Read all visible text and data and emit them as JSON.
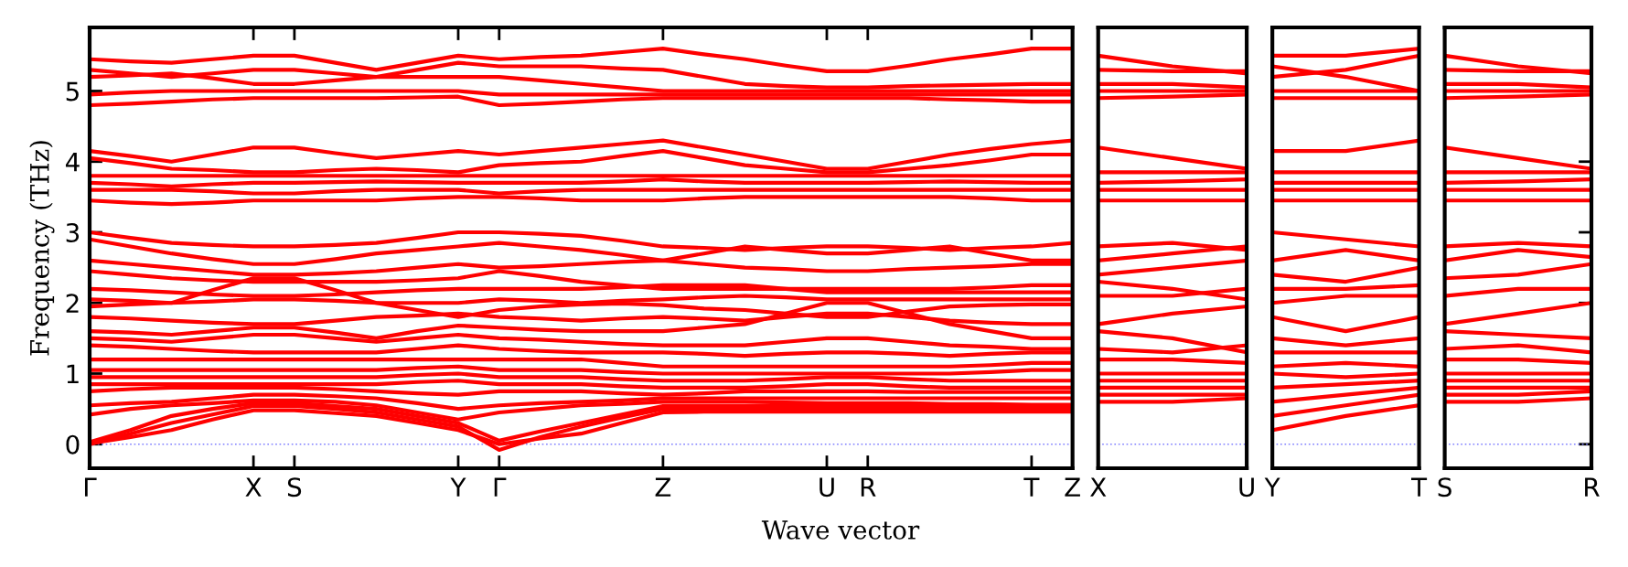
{
  "chart_data": [
    {
      "type": "line",
      "ylabel": "Frequency (THz)",
      "xlabel": "Wave vector",
      "categories": [
        "Γ",
        null,
        null,
        null,
        "X",
        "S",
        null,
        null,
        null,
        "Y",
        "Γ",
        null,
        null,
        null,
        "Z",
        null,
        null,
        null,
        "U",
        "R",
        null,
        null,
        null,
        "T",
        "Z"
      ],
      "ylim": [
        -0.34,
        5.9
      ],
      "yticks": [
        0,
        1,
        2,
        3,
        4,
        5
      ],
      "grid": false,
      "legend": false,
      "marker": "none",
      "line_style": "solid",
      "ref_lines": [
        {
          "axis": "y",
          "value": 0,
          "color": "#8080ff",
          "line_style": "dotted"
        }
      ],
      "series": [
        {
          "color": "#ff0000",
          "values": [
            5.45,
            5.42,
            5.4,
            5.45,
            5.5,
            5.5,
            5.4,
            5.3,
            5.4,
            5.5,
            5.45,
            5.48,
            5.5,
            5.55,
            5.6,
            5.52,
            5.45,
            5.36,
            5.28,
            5.28,
            5.36,
            5.45,
            5.52,
            5.6,
            5.6
          ]
        },
        {
          "color": "#ff0000",
          "values": [
            5.3,
            5.25,
            5.2,
            5.25,
            5.3,
            5.3,
            5.25,
            5.2,
            5.3,
            5.4,
            5.35,
            5.35,
            5.35,
            5.32,
            5.3,
            5.2,
            5.1,
            5.07,
            5.05,
            5.05,
            5.07,
            5.08,
            5.09,
            5.1,
            5.1
          ]
        },
        {
          "color": "#ff0000",
          "values": [
            5.2,
            5.22,
            5.25,
            5.18,
            5.1,
            5.1,
            5.15,
            5.2,
            5.2,
            5.2,
            5.2,
            5.15,
            5.1,
            5.05,
            5.0,
            5.0,
            5.0,
            5.0,
            5.0,
            5.0,
            5.0,
            5.0,
            5.0,
            5.0,
            5.0
          ]
        },
        {
          "color": "#ff0000",
          "values": [
            4.95,
            4.98,
            5.0,
            5.0,
            5.0,
            5.0,
            5.0,
            5.0,
            5.0,
            5.0,
            4.95,
            4.95,
            4.95,
            4.95,
            4.95,
            4.95,
            4.95,
            4.95,
            4.95,
            4.95,
            4.95,
            4.95,
            4.95,
            4.95,
            4.95
          ]
        },
        {
          "color": "#ff0000",
          "values": [
            4.8,
            4.82,
            4.85,
            4.88,
            4.9,
            4.9,
            4.9,
            4.9,
            4.91,
            4.92,
            4.8,
            4.82,
            4.85,
            4.88,
            4.9,
            4.9,
            4.9,
            4.9,
            4.9,
            4.9,
            4.9,
            4.88,
            4.87,
            4.85,
            4.85
          ]
        },
        {
          "color": "#ff0000",
          "values": [
            4.15,
            4.08,
            4.0,
            4.1,
            4.2,
            4.2,
            4.12,
            4.05,
            4.1,
            4.15,
            4.1,
            4.15,
            4.2,
            4.25,
            4.3,
            4.2,
            4.1,
            4.0,
            3.9,
            3.9,
            4.0,
            4.1,
            4.18,
            4.25,
            4.3
          ]
        },
        {
          "color": "#ff0000",
          "values": [
            4.05,
            3.98,
            3.9,
            3.88,
            3.85,
            3.85,
            3.88,
            3.9,
            3.88,
            3.85,
            3.95,
            3.98,
            4.0,
            4.08,
            4.15,
            4.05,
            3.95,
            3.9,
            3.85,
            3.85,
            3.9,
            3.95,
            4.02,
            4.1,
            4.1
          ]
        },
        {
          "color": "#ff0000",
          "values": [
            3.8,
            3.8,
            3.8,
            3.8,
            3.8,
            3.8,
            3.8,
            3.8,
            3.8,
            3.8,
            3.8,
            3.8,
            3.8,
            3.8,
            3.8,
            3.8,
            3.8,
            3.8,
            3.8,
            3.8,
            3.8,
            3.8,
            3.8,
            3.8,
            3.8
          ]
        },
        {
          "color": "#ff0000",
          "values": [
            3.7,
            3.68,
            3.65,
            3.68,
            3.7,
            3.7,
            3.71,
            3.72,
            3.71,
            3.7,
            3.7,
            3.7,
            3.7,
            3.72,
            3.75,
            3.72,
            3.7,
            3.7,
            3.7,
            3.7,
            3.71,
            3.72,
            3.71,
            3.7,
            3.7
          ]
        },
        {
          "color": "#ff0000",
          "values": [
            3.6,
            3.6,
            3.6,
            3.58,
            3.55,
            3.55,
            3.58,
            3.6,
            3.6,
            3.6,
            3.55,
            3.58,
            3.6,
            3.6,
            3.6,
            3.6,
            3.6,
            3.6,
            3.6,
            3.6,
            3.6,
            3.6,
            3.6,
            3.6,
            3.6
          ]
        },
        {
          "color": "#ff0000",
          "values": [
            3.45,
            3.42,
            3.4,
            3.42,
            3.45,
            3.45,
            3.45,
            3.45,
            3.48,
            3.5,
            3.5,
            3.48,
            3.45,
            3.45,
            3.45,
            3.48,
            3.5,
            3.5,
            3.5,
            3.5,
            3.5,
            3.5,
            3.48,
            3.45,
            3.45
          ]
        },
        {
          "color": "#ff0000",
          "values": [
            3.0,
            2.92,
            2.85,
            2.82,
            2.8,
            2.8,
            2.82,
            2.85,
            2.92,
            3.0,
            3.0,
            2.98,
            2.95,
            2.88,
            2.8,
            2.78,
            2.75,
            2.78,
            2.8,
            2.8,
            2.78,
            2.75,
            2.78,
            2.8,
            2.85
          ]
        },
        {
          "color": "#ff0000",
          "values": [
            2.9,
            2.8,
            2.7,
            2.62,
            2.55,
            2.55,
            2.62,
            2.7,
            2.75,
            2.8,
            2.85,
            2.8,
            2.75,
            2.68,
            2.6,
            2.7,
            2.8,
            2.75,
            2.7,
            2.7,
            2.75,
            2.8,
            2.7,
            2.6,
            2.6
          ]
        },
        {
          "color": "#ff0000",
          "values": [
            2.6,
            2.55,
            2.5,
            2.45,
            2.4,
            2.4,
            2.42,
            2.45,
            2.5,
            2.55,
            2.5,
            2.52,
            2.55,
            2.58,
            2.6,
            2.55,
            2.5,
            2.48,
            2.45,
            2.45,
            2.48,
            2.5,
            2.52,
            2.55,
            2.55
          ]
        },
        {
          "color": "#ff0000",
          "values": [
            2.45,
            2.4,
            2.35,
            2.32,
            2.3,
            2.3,
            2.3,
            2.3,
            2.32,
            2.35,
            2.45,
            2.38,
            2.3,
            2.25,
            2.2,
            2.2,
            2.2,
            2.2,
            2.2,
            2.2,
            2.2,
            2.2,
            2.22,
            2.25,
            2.25
          ]
        },
        {
          "color": "#ff0000",
          "values": [
            2.2,
            2.18,
            2.15,
            2.12,
            2.1,
            2.1,
            2.12,
            2.15,
            2.18,
            2.2,
            2.2,
            2.2,
            2.2,
            2.22,
            2.25,
            2.25,
            2.25,
            2.2,
            2.15,
            2.15,
            2.15,
            2.15,
            2.15,
            2.15,
            2.15
          ]
        },
        {
          "color": "#ff0000",
          "values": [
            2.05,
            2.03,
            2.0,
            2.02,
            2.05,
            2.05,
            2.03,
            2.0,
            2.0,
            2.0,
            2.05,
            2.03,
            2.0,
            2.03,
            2.05,
            2.08,
            2.1,
            2.08,
            2.05,
            2.05,
            2.05,
            2.05,
            2.05,
            2.05,
            2.05
          ]
        },
        {
          "color": "#ff0000",
          "values": [
            1.95,
            1.98,
            2.0,
            2.18,
            2.35,
            2.35,
            2.18,
            2.0,
            1.9,
            1.8,
            1.9,
            1.95,
            1.98,
            1.99,
            1.97,
            1.92,
            1.9,
            1.85,
            1.8,
            1.8,
            1.88,
            1.95,
            1.97,
            1.98,
            1.98
          ]
        },
        {
          "color": "#ff0000",
          "values": [
            1.8,
            1.78,
            1.75,
            1.72,
            1.7,
            1.7,
            1.75,
            1.8,
            1.82,
            1.85,
            1.8,
            1.78,
            1.75,
            1.78,
            1.8,
            1.78,
            1.75,
            1.8,
            1.85,
            1.85,
            1.8,
            1.75,
            1.72,
            1.7,
            1.7
          ]
        },
        {
          "color": "#ff0000",
          "values": [
            1.6,
            1.58,
            1.55,
            1.6,
            1.65,
            1.65,
            1.58,
            1.5,
            1.6,
            1.68,
            1.65,
            1.62,
            1.6,
            1.6,
            1.6,
            1.65,
            1.7,
            1.85,
            2.0,
            2.0,
            1.85,
            1.7,
            1.6,
            1.5,
            1.5
          ]
        },
        {
          "color": "#ff0000",
          "values": [
            1.5,
            1.48,
            1.45,
            1.5,
            1.55,
            1.55,
            1.5,
            1.45,
            1.5,
            1.55,
            1.5,
            1.48,
            1.45,
            1.42,
            1.4,
            1.4,
            1.4,
            1.45,
            1.5,
            1.5,
            1.45,
            1.4,
            1.38,
            1.35,
            1.35
          ]
        },
        {
          "color": "#ff0000",
          "values": [
            1.4,
            1.38,
            1.35,
            1.32,
            1.3,
            1.3,
            1.3,
            1.3,
            1.35,
            1.4,
            1.35,
            1.32,
            1.3,
            1.3,
            1.3,
            1.28,
            1.25,
            1.28,
            1.3,
            1.3,
            1.28,
            1.25,
            1.28,
            1.3,
            1.3
          ]
        },
        {
          "color": "#ff0000",
          "values": [
            1.2,
            1.2,
            1.2,
            1.2,
            1.2,
            1.2,
            1.2,
            1.2,
            1.2,
            1.2,
            1.2,
            1.2,
            1.2,
            1.15,
            1.1,
            1.1,
            1.1,
            1.1,
            1.1,
            1.1,
            1.1,
            1.1,
            1.12,
            1.15,
            1.15
          ]
        },
        {
          "color": "#ff0000",
          "values": [
            1.05,
            1.05,
            1.05,
            1.05,
            1.05,
            1.05,
            1.05,
            1.05,
            1.08,
            1.1,
            1.05,
            1.05,
            1.05,
            1.02,
            1.0,
            1.0,
            1.0,
            1.0,
            1.0,
            1.0,
            1.0,
            1.0,
            1.02,
            1.05,
            1.05
          ]
        },
        {
          "color": "#ff0000",
          "values": [
            0.95,
            0.95,
            0.95,
            0.95,
            0.95,
            0.95,
            0.95,
            0.95,
            0.98,
            1.0,
            0.95,
            0.95,
            0.95,
            0.92,
            0.9,
            0.9,
            0.9,
            0.92,
            0.95,
            0.95,
            0.92,
            0.9,
            0.9,
            0.9,
            0.9
          ]
        },
        {
          "color": "#ff0000",
          "values": [
            0.85,
            0.85,
            0.85,
            0.85,
            0.85,
            0.85,
            0.85,
            0.85,
            0.88,
            0.9,
            0.85,
            0.85,
            0.85,
            0.82,
            0.8,
            0.8,
            0.8,
            0.82,
            0.85,
            0.85,
            0.82,
            0.8,
            0.8,
            0.8,
            0.8
          ]
        },
        {
          "color": "#ff0000",
          "values": [
            0.75,
            0.78,
            0.8,
            0.8,
            0.8,
            0.8,
            0.78,
            0.75,
            0.72,
            0.7,
            0.75,
            0.75,
            0.75,
            0.72,
            0.7,
            0.72,
            0.75,
            0.75,
            0.75,
            0.75,
            0.74,
            0.74,
            0.74,
            0.74,
            0.74
          ]
        },
        {
          "color": "#ff0000",
          "values": [
            0.55,
            0.58,
            0.6,
            0.65,
            0.7,
            0.7,
            0.68,
            0.65,
            0.58,
            0.5,
            0.55,
            0.58,
            0.6,
            0.62,
            0.65,
            0.65,
            0.65,
            0.65,
            0.65,
            0.65,
            0.65,
            0.65,
            0.65,
            0.65,
            0.65
          ]
        },
        {
          "color": "#ff0000",
          "values": [
            0.42,
            0.5,
            0.55,
            0.58,
            0.62,
            0.62,
            0.6,
            0.55,
            0.45,
            0.35,
            0.45,
            0.5,
            0.55,
            0.57,
            0.6,
            0.6,
            0.6,
            0.59,
            0.58,
            0.58,
            0.58,
            0.57,
            0.57,
            0.56,
            0.56
          ]
        },
        {
          "color": "#ff0000",
          "values": [
            0.03,
            0.2,
            0.4,
            0.5,
            0.58,
            0.58,
            0.54,
            0.5,
            0.4,
            0.3,
            0.05,
            0.18,
            0.3,
            0.42,
            0.54,
            0.54,
            0.54,
            0.54,
            0.54,
            0.54,
            0.54,
            0.54,
            0.54,
            0.54,
            0.54
          ]
        },
        {
          "color": "#ff0000",
          "values": [
            0.0,
            0.15,
            0.3,
            0.42,
            0.54,
            0.54,
            0.5,
            0.45,
            0.35,
            0.25,
            -0.08,
            0.1,
            0.25,
            0.38,
            0.5,
            0.5,
            0.5,
            0.5,
            0.5,
            0.5,
            0.5,
            0.5,
            0.5,
            0.5,
            0.5
          ]
        },
        {
          "color": "#ff0000",
          "values": [
            0.01,
            0.1,
            0.2,
            0.35,
            0.48,
            0.48,
            0.44,
            0.4,
            0.3,
            0.2,
            0.0,
            0.08,
            0.15,
            0.3,
            0.45,
            0.46,
            0.46,
            0.46,
            0.46,
            0.46,
            0.46,
            0.46,
            0.46,
            0.46,
            0.46
          ]
        }
      ]
    },
    {
      "type": "line",
      "categories": [
        "X",
        null,
        "U"
      ],
      "ylim": [
        -0.34,
        5.9
      ],
      "tick_labels": "x",
      "grid": false,
      "legend": false,
      "marker": "none",
      "line_style": "solid",
      "ref_lines": [
        {
          "axis": "y",
          "value": 0,
          "color": "#8080ff",
          "line_style": "dotted"
        }
      ],
      "series": [
        {
          "color": "#ff0000",
          "values": [
            5.5,
            5.35,
            5.25
          ]
        },
        {
          "color": "#ff0000",
          "values": [
            5.3,
            5.28,
            5.28
          ]
        },
        {
          "color": "#ff0000",
          "values": [
            5.1,
            5.1,
            5.05
          ]
        },
        {
          "color": "#ff0000",
          "values": [
            5.0,
            5.0,
            5.0
          ]
        },
        {
          "color": "#ff0000",
          "values": [
            4.9,
            4.92,
            4.95
          ]
        },
        {
          "color": "#ff0000",
          "values": [
            4.2,
            4.05,
            3.9
          ]
        },
        {
          "color": "#ff0000",
          "values": [
            3.85,
            3.85,
            3.85
          ]
        },
        {
          "color": "#ff0000",
          "values": [
            3.7,
            3.72,
            3.75
          ]
        },
        {
          "color": "#ff0000",
          "values": [
            3.6,
            3.6,
            3.6
          ]
        },
        {
          "color": "#ff0000",
          "values": [
            3.45,
            3.45,
            3.45
          ]
        },
        {
          "color": "#ff0000",
          "values": [
            2.8,
            2.85,
            2.75
          ]
        },
        {
          "color": "#ff0000",
          "values": [
            2.6,
            2.7,
            2.8
          ]
        },
        {
          "color": "#ff0000",
          "values": [
            2.4,
            2.5,
            2.6
          ]
        },
        {
          "color": "#ff0000",
          "values": [
            2.3,
            2.2,
            2.05
          ]
        },
        {
          "color": "#ff0000",
          "values": [
            2.1,
            2.1,
            2.2
          ]
        },
        {
          "color": "#ff0000",
          "values": [
            1.7,
            1.85,
            1.95
          ]
        },
        {
          "color": "#ff0000",
          "values": [
            1.6,
            1.5,
            1.3
          ]
        },
        {
          "color": "#ff0000",
          "values": [
            1.35,
            1.3,
            1.4
          ]
        },
        {
          "color": "#ff0000",
          "values": [
            1.2,
            1.2,
            1.15
          ]
        },
        {
          "color": "#ff0000",
          "values": [
            1.0,
            1.0,
            1.0
          ]
        },
        {
          "color": "#ff0000",
          "values": [
            0.9,
            0.9,
            0.9
          ]
        },
        {
          "color": "#ff0000",
          "values": [
            0.8,
            0.8,
            0.8
          ]
        },
        {
          "color": "#ff0000",
          "values": [
            0.7,
            0.7,
            0.7
          ]
        },
        {
          "color": "#ff0000",
          "values": [
            0.6,
            0.6,
            0.65
          ]
        }
      ]
    },
    {
      "type": "line",
      "categories": [
        "Y",
        null,
        "T"
      ],
      "ylim": [
        -0.34,
        5.9
      ],
      "tick_labels": "x",
      "grid": false,
      "legend": false,
      "marker": "none",
      "line_style": "solid",
      "ref_lines": [
        {
          "axis": "y",
          "value": 0,
          "color": "#8080ff",
          "line_style": "dotted"
        }
      ],
      "series": [
        {
          "color": "#ff0000",
          "values": [
            5.5,
            5.5,
            5.6
          ]
        },
        {
          "color": "#ff0000",
          "values": [
            5.35,
            5.2,
            5.0
          ]
        },
        {
          "color": "#ff0000",
          "values": [
            5.2,
            5.3,
            5.5
          ]
        },
        {
          "color": "#ff0000",
          "values": [
            5.0,
            5.0,
            5.0
          ]
        },
        {
          "color": "#ff0000",
          "values": [
            4.9,
            4.9,
            4.9
          ]
        },
        {
          "color": "#ff0000",
          "values": [
            4.15,
            4.15,
            4.3
          ]
        },
        {
          "color": "#ff0000",
          "values": [
            3.85,
            3.85,
            3.85
          ]
        },
        {
          "color": "#ff0000",
          "values": [
            3.7,
            3.7,
            3.7
          ]
        },
        {
          "color": "#ff0000",
          "values": [
            3.6,
            3.6,
            3.6
          ]
        },
        {
          "color": "#ff0000",
          "values": [
            3.45,
            3.45,
            3.45
          ]
        },
        {
          "color": "#ff0000",
          "values": [
            3.0,
            2.9,
            2.8
          ]
        },
        {
          "color": "#ff0000",
          "values": [
            2.6,
            2.75,
            2.6
          ]
        },
        {
          "color": "#ff0000",
          "values": [
            2.4,
            2.3,
            2.5
          ]
        },
        {
          "color": "#ff0000",
          "values": [
            2.2,
            2.2,
            2.25
          ]
        },
        {
          "color": "#ff0000",
          "values": [
            2.0,
            2.1,
            2.1
          ]
        },
        {
          "color": "#ff0000",
          "values": [
            1.8,
            1.6,
            1.8
          ]
        },
        {
          "color": "#ff0000",
          "values": [
            1.5,
            1.4,
            1.5
          ]
        },
        {
          "color": "#ff0000",
          "values": [
            1.3,
            1.3,
            1.3
          ]
        },
        {
          "color": "#ff0000",
          "values": [
            1.1,
            1.15,
            1.1
          ]
        },
        {
          "color": "#ff0000",
          "values": [
            1.0,
            0.95,
            1.0
          ]
        },
        {
          "color": "#ff0000",
          "values": [
            0.8,
            0.85,
            0.9
          ]
        },
        {
          "color": "#ff0000",
          "values": [
            0.6,
            0.7,
            0.8
          ]
        },
        {
          "color": "#ff0000",
          "values": [
            0.4,
            0.55,
            0.7
          ]
        },
        {
          "color": "#ff0000",
          "values": [
            0.2,
            0.4,
            0.55
          ]
        }
      ]
    },
    {
      "type": "line",
      "categories": [
        "S",
        null,
        "R"
      ],
      "ylim": [
        -0.34,
        5.9
      ],
      "tick_labels": "x",
      "grid": false,
      "legend": false,
      "marker": "none",
      "line_style": "solid",
      "ref_lines": [
        {
          "axis": "y",
          "value": 0,
          "color": "#8080ff",
          "line_style": "dotted"
        }
      ],
      "series": [
        {
          "color": "#ff0000",
          "values": [
            5.5,
            5.35,
            5.25
          ]
        },
        {
          "color": "#ff0000",
          "values": [
            5.3,
            5.28,
            5.28
          ]
        },
        {
          "color": "#ff0000",
          "values": [
            5.1,
            5.1,
            5.05
          ]
        },
        {
          "color": "#ff0000",
          "values": [
            5.0,
            5.0,
            5.0
          ]
        },
        {
          "color": "#ff0000",
          "values": [
            4.9,
            4.92,
            4.95
          ]
        },
        {
          "color": "#ff0000",
          "values": [
            4.2,
            4.05,
            3.9
          ]
        },
        {
          "color": "#ff0000",
          "values": [
            3.85,
            3.85,
            3.85
          ]
        },
        {
          "color": "#ff0000",
          "values": [
            3.7,
            3.72,
            3.75
          ]
        },
        {
          "color": "#ff0000",
          "values": [
            3.6,
            3.6,
            3.6
          ]
        },
        {
          "color": "#ff0000",
          "values": [
            3.45,
            3.45,
            3.45
          ]
        },
        {
          "color": "#ff0000",
          "values": [
            2.8,
            2.85,
            2.8
          ]
        },
        {
          "color": "#ff0000",
          "values": [
            2.6,
            2.75,
            2.65
          ]
        },
        {
          "color": "#ff0000",
          "values": [
            2.35,
            2.4,
            2.55
          ]
        },
        {
          "color": "#ff0000",
          "values": [
            2.1,
            2.2,
            2.2
          ]
        },
        {
          "color": "#ff0000",
          "values": [
            1.7,
            1.85,
            2.0
          ]
        },
        {
          "color": "#ff0000",
          "values": [
            1.6,
            1.55,
            1.5
          ]
        },
        {
          "color": "#ff0000",
          "values": [
            1.35,
            1.4,
            1.3
          ]
        },
        {
          "color": "#ff0000",
          "values": [
            1.2,
            1.2,
            1.15
          ]
        },
        {
          "color": "#ff0000",
          "values": [
            1.0,
            1.0,
            1.0
          ]
        },
        {
          "color": "#ff0000",
          "values": [
            0.9,
            0.9,
            0.9
          ]
        },
        {
          "color": "#ff0000",
          "values": [
            0.8,
            0.8,
            0.8
          ]
        },
        {
          "color": "#ff0000",
          "values": [
            0.7,
            0.7,
            0.75
          ]
        },
        {
          "color": "#ff0000",
          "values": [
            0.6,
            0.6,
            0.65
          ]
        }
      ]
    }
  ]
}
